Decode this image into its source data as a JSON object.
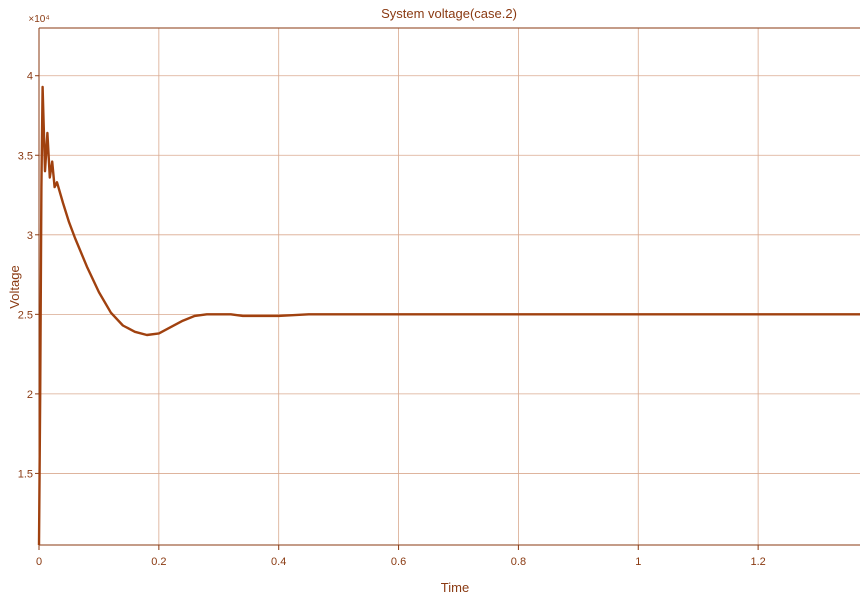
{
  "chart_data": {
    "type": "line",
    "title": "System voltage(case.2)",
    "xlabel": "Time",
    "ylabel": "Voltage",
    "y_exponent_label": "×10⁴",
    "xlim": [
      0,
      1.37
    ],
    "ylim": [
      1.05,
      4.3
    ],
    "x_ticks": [
      0,
      0.2,
      0.4,
      0.6,
      0.8,
      1,
      1.2
    ],
    "x_tick_labels": [
      "0",
      "0.2",
      "0.4",
      "0.6",
      "0.8",
      "1",
      "1.2"
    ],
    "y_ticks": [
      1.5,
      2,
      2.5,
      3,
      3.5,
      4
    ],
    "y_tick_labels": [
      "1.5",
      "2",
      "2.5",
      "3",
      "3.5",
      "4"
    ],
    "grid": true,
    "colors": {
      "line": "#a0410f",
      "grid": "#d9a98f",
      "axis": "#8a3a12"
    },
    "series": [
      {
        "x": [
          0,
          0.002,
          0.004,
          0.006,
          0.01,
          0.014,
          0.018,
          0.022,
          0.026,
          0.03,
          0.04,
          0.05,
          0.06,
          0.08,
          0.1,
          0.12,
          0.14,
          0.16,
          0.18,
          0.2,
          0.22,
          0.24,
          0.26,
          0.28,
          0.3,
          0.32,
          0.34,
          0.36,
          0.38,
          0.4,
          0.45,
          0.5,
          0.6,
          0.8,
          1.0,
          1.2,
          1.37
        ],
        "y": [
          1.05,
          2.0,
          3.3,
          3.93,
          3.4,
          3.64,
          3.36,
          3.46,
          3.3,
          3.33,
          3.2,
          3.08,
          2.98,
          2.8,
          2.64,
          2.51,
          2.43,
          2.39,
          2.37,
          2.38,
          2.42,
          2.46,
          2.49,
          2.5,
          2.5,
          2.5,
          2.49,
          2.49,
          2.49,
          2.49,
          2.5,
          2.5,
          2.5,
          2.5,
          2.5,
          2.5,
          2.5
        ]
      }
    ]
  }
}
